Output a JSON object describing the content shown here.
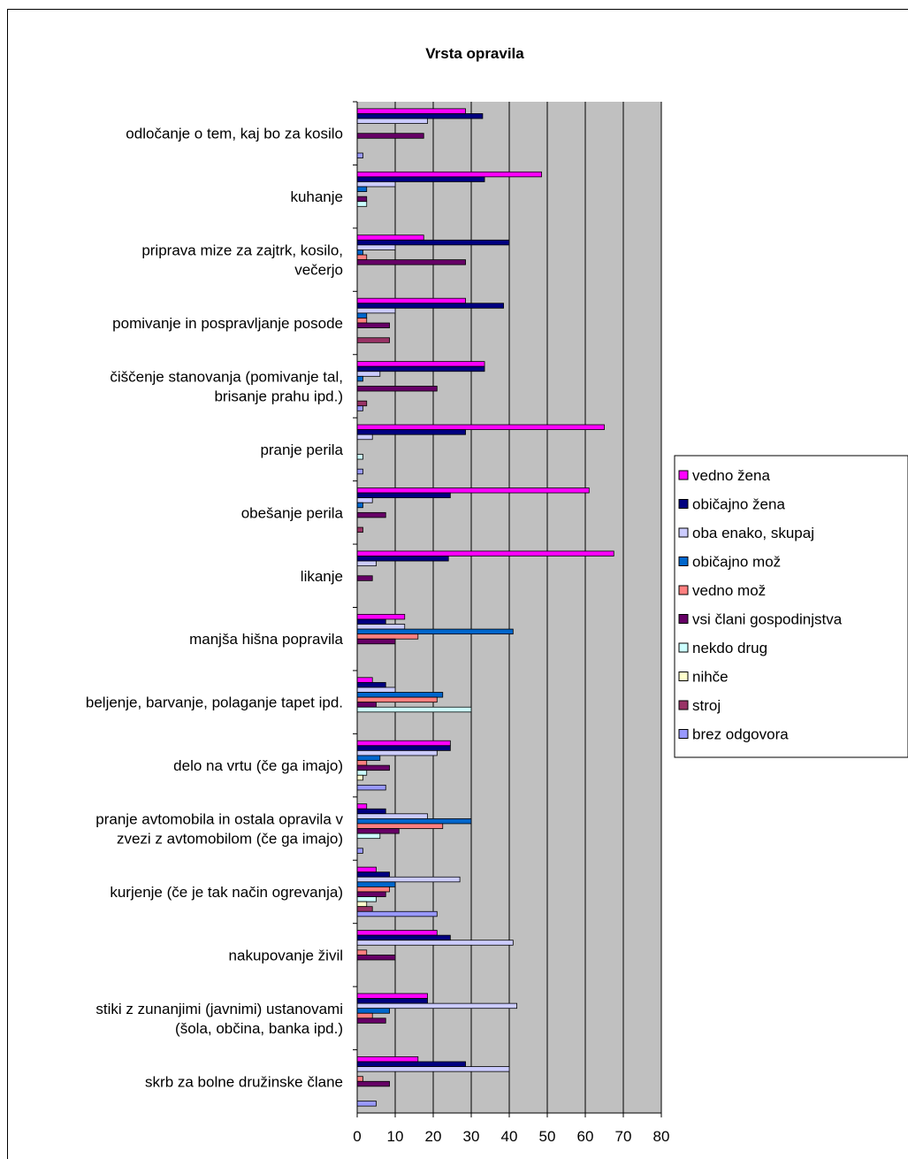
{
  "chart_data": {
    "type": "bar",
    "orientation": "horizontal",
    "title": "Vrsta opravila",
    "xlim": [
      0,
      80
    ],
    "xticks": [
      "0",
      "10",
      "20",
      "30",
      "40",
      "50",
      "60",
      "70",
      "80"
    ],
    "grid": true,
    "legend_position": "right",
    "categories": [
      [
        "odločanje o tem, kaj bo za kosilo"
      ],
      [
        "kuhanje"
      ],
      [
        "priprava mize za zajtrk, kosilo,",
        "večerjo"
      ],
      [
        "pomivanje in pospravljanje posode"
      ],
      [
        "čiščenje stanovanja (pomivanje tal,",
        "brisanje prahu ipd.)"
      ],
      [
        "pranje perila"
      ],
      [
        "obešanje perila"
      ],
      [
        "likanje"
      ],
      [
        "manjša hišna popravila"
      ],
      [
        "beljenje, barvanje, polaganje tapet ipd."
      ],
      [
        "delo na vrtu (če ga imajo)"
      ],
      [
        "pranje avtomobila in ostala opravila v",
        "zvezi z avtomobilom (če ga imajo)"
      ],
      [
        "kurjenje (če je tak način ogrevanja)"
      ],
      [
        "nakupovanje živil"
      ],
      [
        "stiki z zunanjimi (javnimi) ustanovami",
        "(šola, občina, banka ipd.)"
      ],
      [
        "skrb za bolne družinske člane"
      ]
    ],
    "series": [
      {
        "name": "vedno žena",
        "color": "#ff00ff",
        "values": [
          28.5,
          48.5,
          17.5,
          28.5,
          33.5,
          65,
          61,
          67.5,
          12.5,
          4,
          24.5,
          2.5,
          5,
          21,
          18.5,
          16
        ]
      },
      {
        "name": "običajno žena",
        "color": "#000080",
        "values": [
          33,
          33.5,
          40,
          38.5,
          33.5,
          28.5,
          24.5,
          24,
          7.5,
          7.5,
          24.5,
          7.5,
          8.5,
          24.5,
          18.5,
          28.5
        ]
      },
      {
        "name": "oba enako, skupaj",
        "color": "#ccccff",
        "values": [
          18.5,
          10,
          10,
          10,
          6,
          4,
          4,
          5,
          12.5,
          10,
          21,
          18.5,
          27,
          41,
          42,
          40
        ]
      },
      {
        "name": "običajno mož",
        "color": "#0066cc",
        "values": [
          0,
          2.5,
          1.5,
          2.5,
          1.5,
          0,
          1.5,
          0,
          41,
          22.5,
          6,
          30,
          10,
          0,
          8.5,
          0
        ]
      },
      {
        "name": "vedno mož",
        "color": "#ff8080",
        "values": [
          0,
          0,
          2.5,
          2.5,
          0,
          0,
          0,
          0,
          16,
          21,
          2.5,
          22.5,
          8.5,
          2.5,
          4,
          1.5
        ]
      },
      {
        "name": "vsi člani gospodinjstva",
        "color": "#660066",
        "values": [
          17.5,
          2.5,
          28.5,
          8.5,
          21,
          0,
          7.5,
          4,
          10,
          5,
          8.5,
          11,
          7.5,
          10,
          7.5,
          8.5
        ]
      },
      {
        "name": "nekdo drug",
        "color": "#ccffff",
        "values": [
          0,
          2.5,
          0,
          0,
          0,
          1.5,
          0,
          0,
          0,
          30,
          2.5,
          6,
          5,
          0,
          0,
          0
        ]
      },
      {
        "name": "nihče",
        "color": "#ffffcc",
        "values": [
          0,
          0,
          0,
          0,
          0,
          0,
          0,
          0,
          0,
          0,
          1.5,
          0,
          2.5,
          0,
          0,
          0
        ]
      },
      {
        "name": "stroj",
        "color": "#993366",
        "values": [
          0,
          0,
          0,
          8.5,
          2.5,
          0,
          1.5,
          0,
          0,
          0,
          0,
          0,
          4,
          0,
          0,
          0
        ]
      },
      {
        "name": "brez odgovora",
        "color": "#9999ff",
        "values": [
          1.5,
          0,
          0,
          0,
          1.5,
          1.5,
          0,
          0,
          0,
          0,
          7.5,
          1.5,
          21,
          0,
          0,
          5
        ]
      }
    ]
  }
}
